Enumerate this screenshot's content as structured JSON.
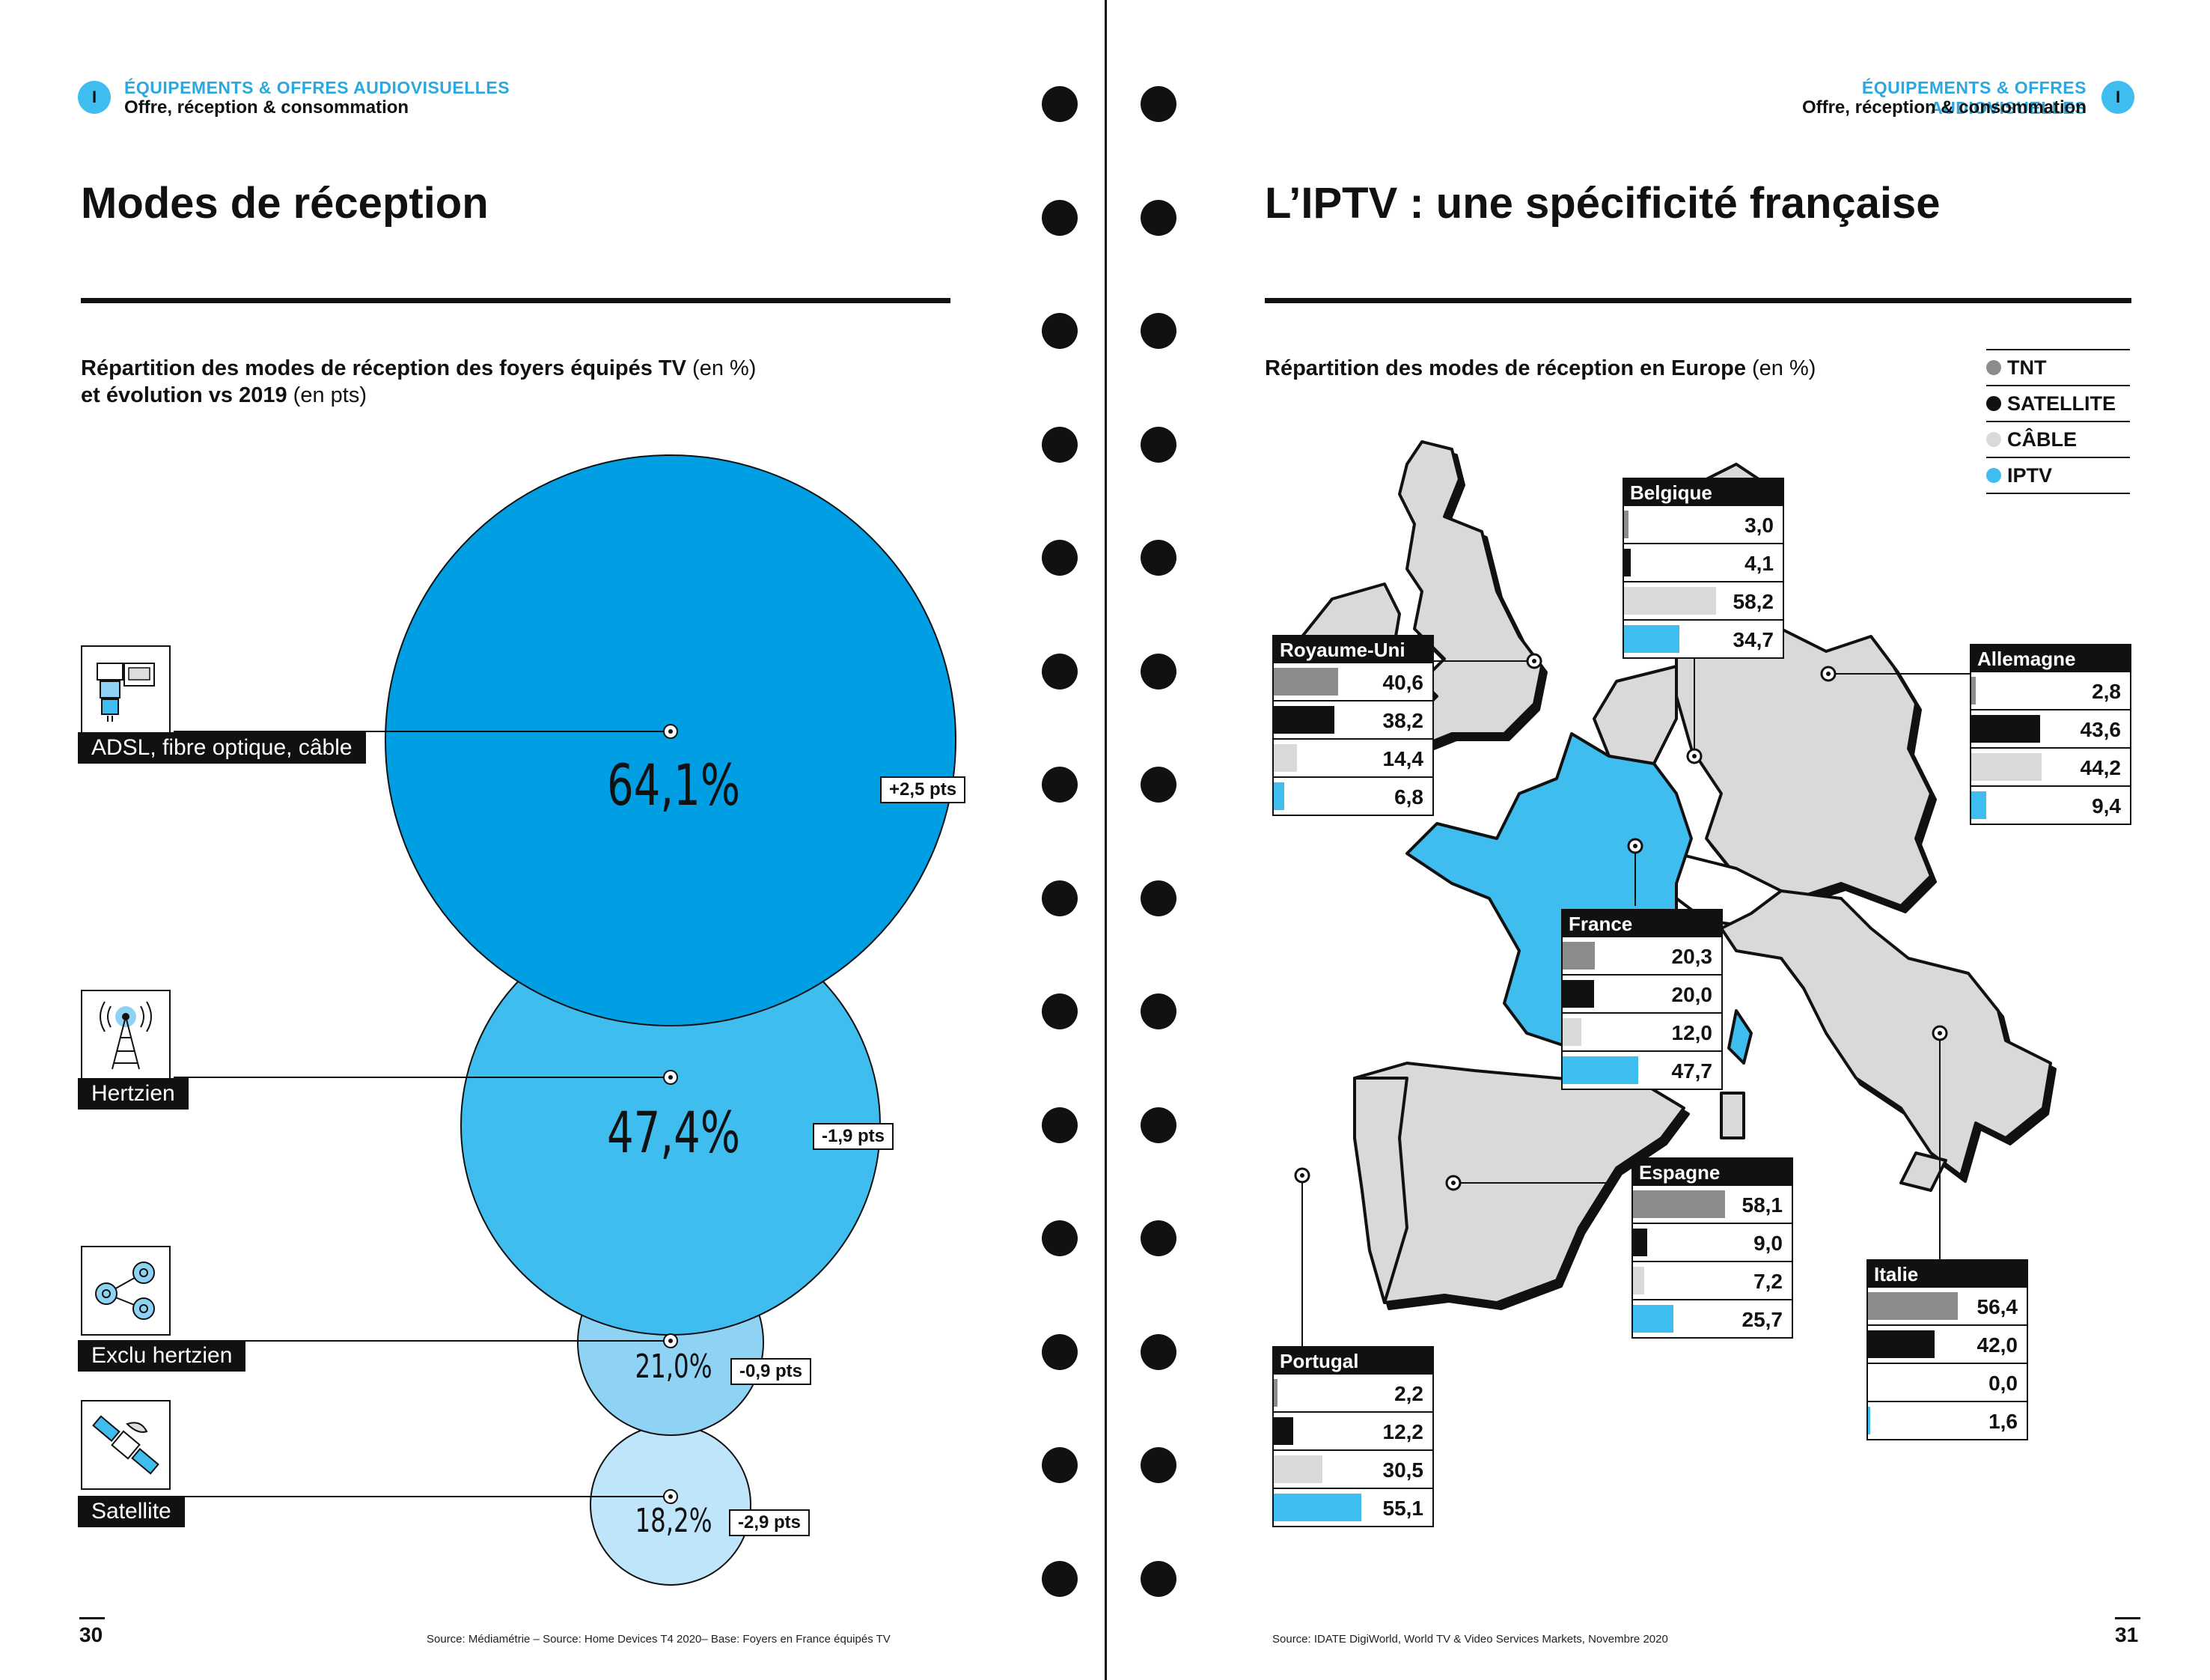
{
  "left_page": {
    "badge": "I",
    "section": "ÉQUIPEMENTS & OFFRES AUDIOVISUELLES",
    "subsection": "Offre, réception & consommation",
    "title": "Modes de réception",
    "caption_bold_1": "Répartition des modes de réception des foyers équipés TV",
    "caption_norm_1": " (en %)",
    "caption_bold_2": "et évolution vs 2019",
    "caption_norm_2": " (en pts)",
    "page_number": "30",
    "source": "Source: Médiamétrie – Source: Home Devices T4 2020– Base: Foyers en France équipés TV"
  },
  "right_page": {
    "badge": "I",
    "section": "ÉQUIPEMENTS & OFFRES AUDIOVISUELLES",
    "subsection": "Offre, réception & consommation",
    "title": "L’IPTV : une spécificité française",
    "caption_bold": "Répartition des modes de réception en Europe",
    "caption_norm": " (en %)",
    "page_number": "31",
    "source": "Source: IDATE DigiWorld, World TV & Video Services Markets, Novembre 2020",
    "legend": [
      {
        "label": "TNT",
        "color": "#8c8c8c"
      },
      {
        "label": "SATELLITE",
        "color": "#111111"
      },
      {
        "label": "CÂBLE",
        "color": "#d9d9d9"
      },
      {
        "label": "IPTV",
        "color": "#3ebdee"
      }
    ],
    "map_colors": {
      "land": "#d9d9d9",
      "france": "#3ebdee",
      "border": "#111111"
    }
  },
  "chart_data": [
    {
      "type": "bubble",
      "title": "Répartition des modes de réception des foyers équipés TV (en %) et évolution vs 2019 (en pts)",
      "categories": [
        "ADSL, fibre optique, câble",
        "Hertzien",
        "Exclu hertzien",
        "Satellite"
      ],
      "values": [
        64.1,
        47.4,
        21.0,
        18.2
      ],
      "value_labels": [
        "64,1%",
        "47,4%",
        "21,0%",
        "18,2%"
      ],
      "delta_labels": [
        "+2,5 pts",
        "-1,9 pts",
        "-0,9 pts",
        "-2,9 pts"
      ],
      "deltas": [
        2.5,
        -1.9,
        -0.9,
        -2.9
      ],
      "icons": [
        "modem-icon",
        "antenna-icon",
        "network-icon",
        "satellite-icon"
      ],
      "colors": [
        "#009fe3",
        "#3ebdee",
        "#8fd3f4",
        "#bfe5fa"
      ]
    },
    {
      "type": "table",
      "title": "Répartition des modes de réception en Europe (en %)",
      "series_order": [
        "TNT",
        "SATELLITE",
        "CÂBLE",
        "IPTV"
      ],
      "countries": [
        {
          "name": "Belgique",
          "values": [
            3.0,
            4.1,
            58.2,
            34.7
          ],
          "labels": [
            "3,0",
            "4,1",
            "58,2",
            "34,7"
          ]
        },
        {
          "name": "Royaume-Uni",
          "values": [
            40.6,
            38.2,
            14.4,
            6.8
          ],
          "labels": [
            "40,6",
            "38,2",
            "14,4",
            "6,8"
          ]
        },
        {
          "name": "Allemagne",
          "values": [
            2.8,
            43.6,
            44.2,
            9.4
          ],
          "labels": [
            "2,8",
            "43,6",
            "44,2",
            "9,4"
          ]
        },
        {
          "name": "France",
          "values": [
            20.3,
            20.0,
            12.0,
            47.7
          ],
          "labels": [
            "20,3",
            "20,0",
            "12,0",
            "47,7"
          ]
        },
        {
          "name": "Espagne",
          "values": [
            58.1,
            9.0,
            7.2,
            25.7
          ],
          "labels": [
            "58,1",
            "9,0",
            "7,2",
            "25,7"
          ]
        },
        {
          "name": "Italie",
          "values": [
            56.4,
            42.0,
            0.0,
            1.6
          ],
          "labels": [
            "56,4",
            "42,0",
            "0,0",
            "1,6"
          ]
        },
        {
          "name": "Portugal",
          "values": [
            2.2,
            12.2,
            30.5,
            55.1
          ],
          "labels": [
            "2,2",
            "12,2",
            "30,5",
            "55,1"
          ]
        }
      ]
    }
  ]
}
